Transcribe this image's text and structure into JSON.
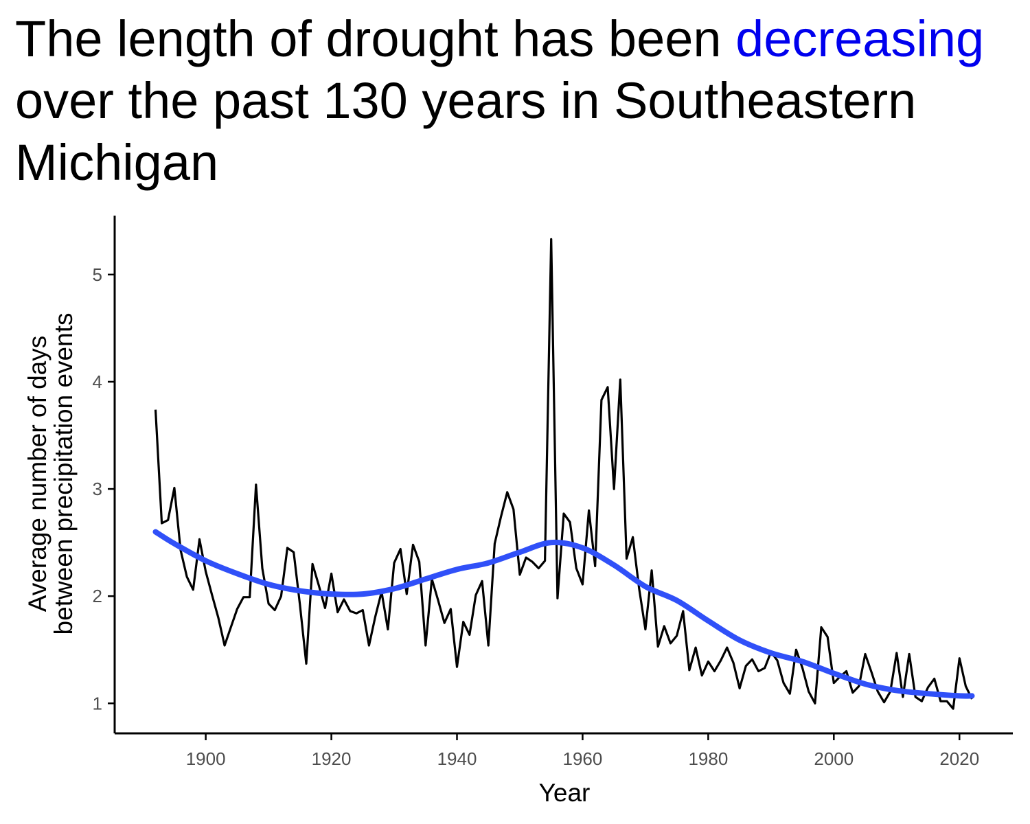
{
  "title": {
    "before": "The length of drought has been ",
    "highlight": "decreasing",
    "after": " over the past 130 years in Southeastern Michigan"
  },
  "colors": {
    "highlight": "#0000ee",
    "series": "#000000",
    "smooth": "#3050f8",
    "axis": "#000000",
    "tick_text": "#4d4d4d"
  },
  "chart_data": {
    "type": "line",
    "title": "The length of drought has been decreasing over the past 130 years in Southeastern Michigan",
    "xlabel": "Year",
    "ylabel_lines": [
      "Average number of days",
      "between precipitation events"
    ],
    "xlim": [
      1885.5,
      2028.5
    ],
    "ylim": [
      0.72,
      5.55
    ],
    "xticks": [
      1900,
      1920,
      1940,
      1960,
      1980,
      2000,
      2020
    ],
    "yticks": [
      1,
      2,
      3,
      4,
      5
    ],
    "grid": false,
    "legend": "none",
    "series": [
      {
        "x": [
          1892,
          1893,
          1894,
          1895,
          1896,
          1897,
          1898,
          1899,
          1900,
          1901,
          1902,
          1903,
          1904,
          1905,
          1906,
          1907,
          1908,
          1909,
          1910,
          1911,
          1912,
          1913,
          1914,
          1915,
          1916,
          1917,
          1918,
          1919,
          1920,
          1921,
          1922,
          1923,
          1924,
          1925,
          1926,
          1927,
          1928,
          1929,
          1930,
          1931,
          1932,
          1933,
          1934,
          1935,
          1936,
          1937,
          1938,
          1939,
          1940,
          1941,
          1942,
          1943,
          1944,
          1945,
          1946,
          1947,
          1948,
          1949,
          1950,
          1951,
          1952,
          1953,
          1954,
          1955,
          1956,
          1957,
          1958,
          1959,
          1960,
          1961,
          1962,
          1963,
          1964,
          1965,
          1966,
          1967,
          1968,
          1969,
          1970,
          1971,
          1972,
          1973,
          1974,
          1975,
          1976,
          1977,
          1978,
          1979,
          1980,
          1981,
          1982,
          1983,
          1984,
          1985,
          1986,
          1987,
          1988,
          1989,
          1990,
          1991,
          1992,
          1993,
          1994,
          1995,
          1996,
          1997,
          1998,
          1999,
          2000,
          2001,
          2002,
          2003,
          2004,
          2005,
          2006,
          2007,
          2008,
          2009,
          2010,
          2011,
          2012,
          2013,
          2014,
          2015,
          2016,
          2017,
          2018,
          2019,
          2020,
          2021,
          2022
        ],
        "y": [
          3.74,
          2.68,
          2.71,
          3.01,
          2.43,
          2.18,
          2.06,
          2.53,
          2.23,
          2.01,
          1.8,
          1.54,
          1.71,
          1.88,
          1.99,
          1.99,
          3.04,
          2.26,
          1.93,
          1.87,
          2.0,
          2.45,
          2.41,
          1.92,
          1.37,
          2.3,
          2.1,
          1.89,
          2.21,
          1.85,
          1.97,
          1.86,
          1.84,
          1.87,
          1.54,
          1.81,
          2.04,
          1.69,
          2.31,
          2.44,
          2.02,
          2.48,
          2.32,
          1.54,
          2.16,
          1.96,
          1.75,
          1.88,
          1.34,
          1.76,
          1.64,
          2.01,
          2.14,
          1.54,
          2.49,
          2.74,
          2.97,
          2.81,
          2.2,
          2.36,
          2.32,
          2.26,
          2.33,
          5.33,
          1.98,
          2.77,
          2.69,
          2.26,
          2.11,
          2.8,
          2.28,
          3.83,
          3.95,
          3.0,
          4.02,
          2.35,
          2.55,
          2.07,
          1.69,
          2.24,
          1.53,
          1.72,
          1.56,
          1.63,
          1.86,
          1.31,
          1.52,
          1.26,
          1.39,
          1.3,
          1.4,
          1.52,
          1.38,
          1.14,
          1.35,
          1.41,
          1.3,
          1.33,
          1.48,
          1.4,
          1.19,
          1.09,
          1.5,
          1.33,
          1.11,
          1.0,
          1.71,
          1.62,
          1.19,
          1.25,
          1.3,
          1.1,
          1.16,
          1.46,
          1.29,
          1.11,
          1.01,
          1.11,
          1.47,
          1.06,
          1.46,
          1.06,
          1.02,
          1.15,
          1.23,
          1.02,
          1.02,
          0.95,
          1.42,
          1.16,
          1.04
        ]
      },
      {
        "x": [
          1892,
          1895,
          1900,
          1905,
          1910,
          1915,
          1920,
          1925,
          1930,
          1935,
          1940,
          1945,
          1950,
          1955,
          1960,
          1965,
          1970,
          1975,
          1980,
          1985,
          1990,
          1995,
          2000,
          2005,
          2010,
          2015,
          2020,
          2022
        ],
        "y": [
          2.6,
          2.49,
          2.33,
          2.21,
          2.11,
          2.05,
          2.02,
          2.02,
          2.07,
          2.16,
          2.25,
          2.31,
          2.41,
          2.5,
          2.45,
          2.29,
          2.09,
          1.96,
          1.77,
          1.59,
          1.47,
          1.39,
          1.28,
          1.18,
          1.12,
          1.09,
          1.07,
          1.07
        ]
      }
    ]
  }
}
